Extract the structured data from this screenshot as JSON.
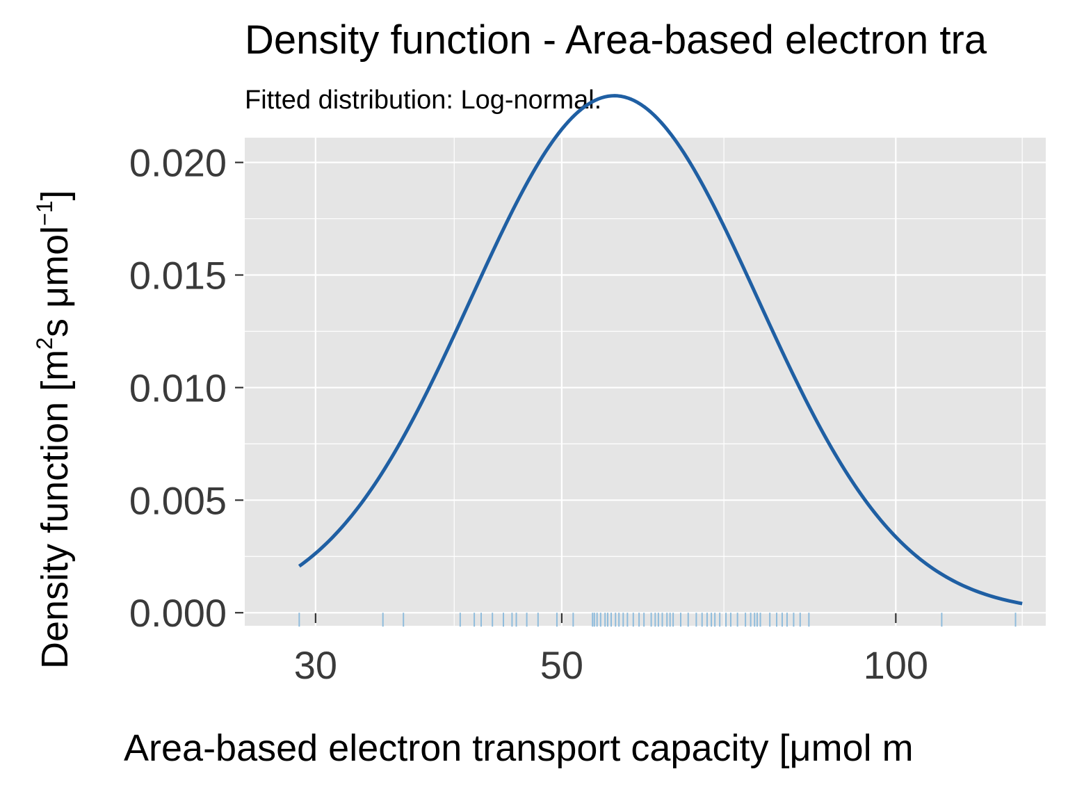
{
  "chart_data": {
    "type": "line",
    "title": "Density function - Area-based electron tra",
    "subtitle": "Fitted distribution: Log-normal.",
    "xlabel": "Area-based electron transport capacity [μmol m",
    "ylabel": {
      "prefix": "Density function [m",
      "sup1": "2",
      "mid": "s μmol",
      "sup2": "−1",
      "suffix": "]"
    },
    "x_scale": "log",
    "xlim": [
      25.9,
      136.5
    ],
    "ylim": [
      -0.00058,
      0.0211
    ],
    "x_ticks": [
      30,
      50,
      100
    ],
    "x_tick_labels": [
      "30",
      "50",
      "100"
    ],
    "x_minor_ticks": [
      40,
      70,
      130
    ],
    "y_ticks": [
      0.0,
      0.005,
      0.01,
      0.015,
      0.02
    ],
    "y_tick_labels": [
      "0.000",
      "0.005",
      "0.010",
      "0.015",
      "0.020"
    ],
    "y_minor_ticks": [
      0.0025,
      0.0075,
      0.0125,
      0.0175
    ],
    "grid": true,
    "series": [
      {
        "distribution": "log-normal",
        "mu": 4.11,
        "sigma": 0.298,
        "x_range": [
          29.0,
          130.0
        ],
        "color": "#1f5fa3"
      }
    ],
    "rug": {
      "color": "#8fbcdc",
      "values": [
        29.0,
        34.5,
        36.0,
        40.5,
        41.7,
        42.3,
        43.3,
        44.3,
        45.1,
        45.5,
        46.5,
        47.6,
        49.5,
        51.2,
        53.3,
        53.5,
        53.8,
        54.2,
        54.7,
        55.0,
        55.4,
        55.9,
        56.3,
        56.8,
        57.3,
        58.0,
        58.7,
        59.3,
        60.2,
        60.7,
        61.1,
        61.6,
        62.2,
        62.6,
        63.0,
        64.0,
        65.0,
        66.1,
        66.9,
        67.6,
        68.2,
        68.7,
        69.4,
        70.3,
        71.0,
        72.0,
        73.2,
        74.0,
        74.6,
        75.0,
        75.5,
        77.0,
        78.1,
        79.0,
        79.8,
        80.9,
        82.0,
        83.5,
        110.0,
        128.2
      ]
    }
  }
}
